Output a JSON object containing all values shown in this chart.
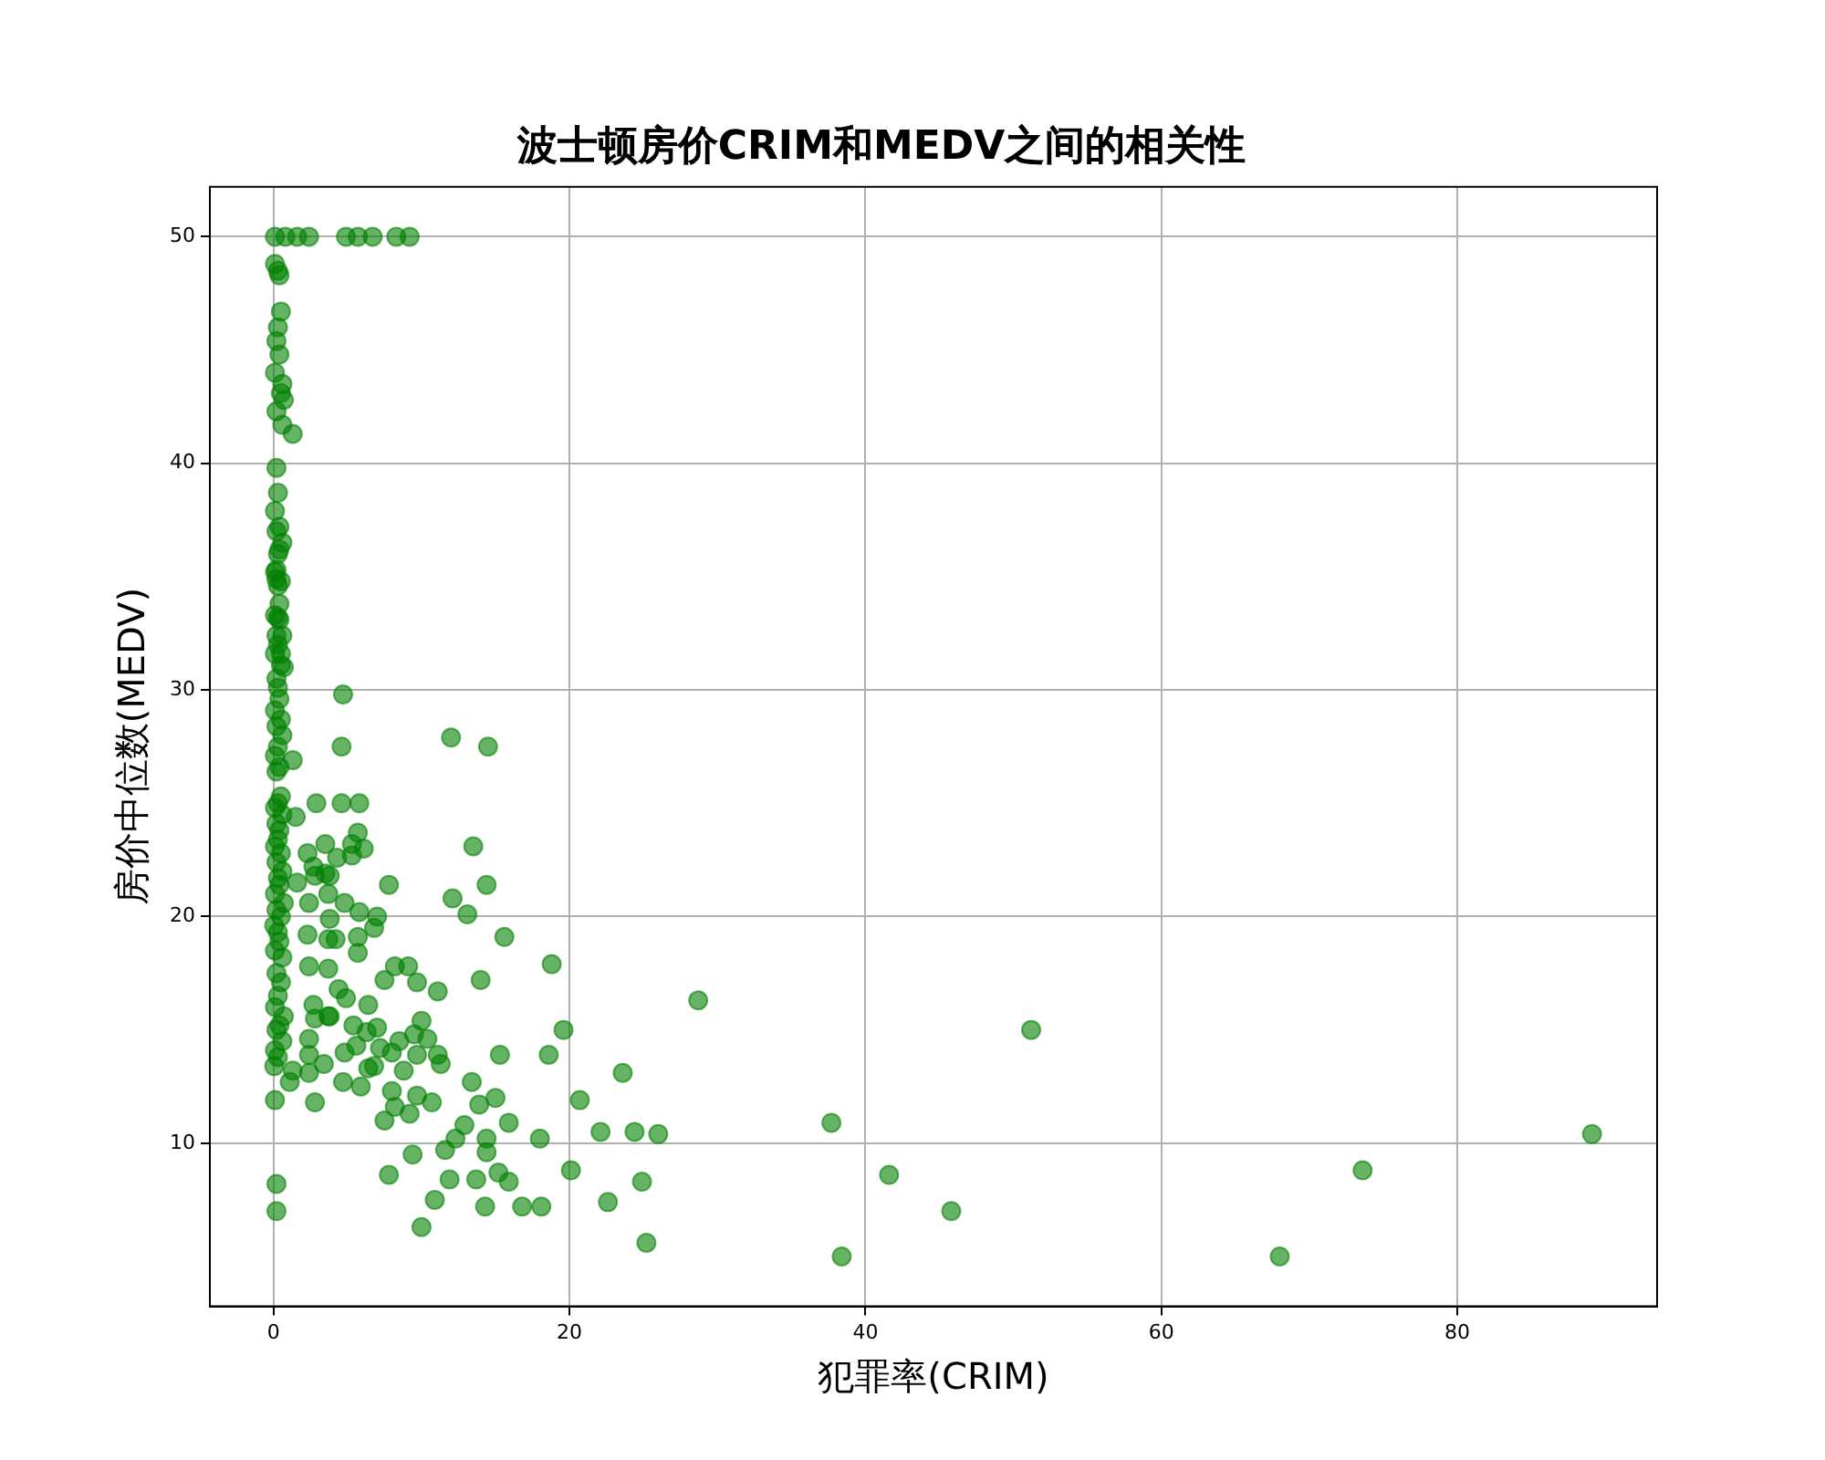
{
  "chart_data": {
    "type": "scatter",
    "title": "波士顿房价CRIM和MEDV之间的相关性",
    "xlabel": "犯罪率(CRIM)",
    "ylabel": "房价中位数(MEDV)",
    "xlim": [
      -4.3,
      93.5
    ],
    "ylim": [
      2.8,
      52.2
    ],
    "xticks": [
      0,
      20,
      40,
      60,
      80
    ],
    "yticks": [
      10,
      20,
      30,
      40,
      50
    ],
    "grid": true,
    "marker": "circle",
    "series": [
      {
        "color": "#008000",
        "x": [
          0.1,
          0.8,
          1.6,
          2.4,
          4.9,
          5.7,
          6.7,
          8.3,
          9.2,
          0.1,
          0.3,
          0.4,
          0.5,
          0.3,
          0.2,
          0.4,
          0.1,
          0.6,
          0.5,
          0.7,
          0.2,
          0.6,
          1.3,
          0.2,
          0.3,
          0.1,
          0.4,
          0.6,
          0.3,
          0.2,
          0.5,
          0.4,
          0.3,
          0.6,
          0.5,
          0.7,
          4.7,
          4.6,
          12.0,
          14.5,
          2.9,
          4.6,
          5.8,
          13.5,
          7.8,
          14.4,
          12.1,
          13.1,
          15.6,
          18.8,
          28.7,
          7.5,
          8.2,
          9.1,
          9.7,
          11.1,
          14.0,
          19.6,
          15.3,
          18.6,
          23.6,
          20.7,
          22.1,
          24.4,
          26.0,
          20.1,
          24.9,
          22.6,
          25.2,
          18.1,
          16.8,
          14.3,
          10.0,
          10.9,
          11.9,
          13.7,
          15.9,
          15.2,
          7.8,
          9.4,
          11.6,
          14.4,
          18.0,
          14.4,
          12.3,
          12.9,
          15.9,
          15.0,
          13.9,
          13.4,
          10.7,
          9.2,
          7.5,
          8.2,
          9.7,
          8.0,
          5.9,
          4.7,
          2.8,
          0.1,
          0.2,
          0.2,
          11.1,
          11.3,
          10.0,
          10.4,
          9.7,
          9.5,
          8.5,
          8.8,
          8.0,
          7.2,
          6.8,
          6.4,
          7.0,
          6.3,
          5.4,
          6.4,
          4.9,
          4.4,
          4.8,
          5.6,
          3.7,
          2.7,
          2.4,
          3.7,
          2.4,
          2.4,
          3.4,
          1.3,
          1.1,
          2.4,
          2.8,
          3.8,
          5.7,
          5.7,
          6.8,
          7.0,
          5.8,
          4.8,
          3.8,
          4.2,
          3.7,
          2.3,
          2.4,
          1.6,
          3.7,
          3.8,
          2.8,
          3.5,
          2.3,
          2.7,
          3.5,
          4.3,
          5.3,
          5.3,
          6.1,
          5.7,
          1.5,
          1.3,
          37.7,
          38.4,
          41.6,
          45.8,
          51.2,
          68.0,
          73.6,
          89.1,
          0.05,
          0.3,
          0.1,
          0.6,
          0.2,
          0.4,
          0.7,
          0.1,
          0.3,
          0.5,
          0.2,
          0.6,
          0.1,
          0.4,
          0.3,
          0.05,
          0.5,
          0.2,
          0.7,
          0.1,
          0.4,
          0.3,
          0.6,
          0.2,
          0.5,
          0.1,
          0.3,
          0.4,
          0.2,
          0.6,
          0.1,
          0.3,
          0.5,
          0.2,
          0.4,
          0.1,
          0.3,
          0.6,
          0.2,
          0.5,
          0.1,
          0.4,
          0.3,
          0.2,
          0.5,
          0.1,
          0.3,
          0.2,
          0.4,
          0.1,
          0.3,
          0.2,
          0.1,
          0.4,
          0.2
        ],
        "values": [
          50,
          50,
          50,
          50,
          50,
          50,
          50,
          50,
          50,
          48.8,
          48.5,
          48.3,
          46.7,
          46,
          45.4,
          44.8,
          44,
          43.5,
          43.1,
          42.8,
          42.3,
          41.7,
          41.3,
          39.8,
          38.7,
          37.9,
          37.2,
          36.5,
          36,
          35.3,
          34.8,
          33.8,
          33.2,
          32.4,
          31.6,
          31,
          29.8,
          27.5,
          27.9,
          27.5,
          25,
          25,
          25,
          23.1,
          21.4,
          21.4,
          20.8,
          20.1,
          19.1,
          17.9,
          16.3,
          17.2,
          17.8,
          17.8,
          17.1,
          16.7,
          17.2,
          15,
          13.9,
          13.9,
          13.1,
          11.9,
          10.5,
          10.5,
          10.4,
          8.8,
          8.3,
          7.4,
          5.6,
          7.2,
          7.2,
          7.2,
          6.3,
          7.5,
          8.4,
          8.4,
          8.3,
          8.7,
          8.6,
          9.5,
          9.7,
          9.6,
          10.2,
          10.2,
          10.2,
          10.8,
          10.9,
          12,
          11.7,
          12.7,
          11.8,
          11.3,
          11,
          11.6,
          12.1,
          12.3,
          12.5,
          12.7,
          11.8,
          11.9,
          8.2,
          7,
          13.9,
          13.5,
          15.4,
          14.6,
          13.9,
          14.8,
          14.5,
          13.2,
          14,
          14.2,
          13.4,
          13.3,
          15.1,
          14.9,
          15.2,
          16.1,
          16.4,
          16.8,
          14,
          14.3,
          15.6,
          16.1,
          17.8,
          17.7,
          13.9,
          13.1,
          13.5,
          13.2,
          12.7,
          14.6,
          15.5,
          15.6,
          19.1,
          18.4,
          19.5,
          20,
          20.2,
          20.6,
          19.9,
          19,
          19,
          19.2,
          20.6,
          21.5,
          21,
          21.8,
          21.8,
          21.9,
          22.8,
          22.2,
          23.2,
          22.6,
          22.7,
          23.2,
          23,
          23.7,
          24.4,
          26.9,
          10.9,
          5,
          8.6,
          7,
          15,
          5,
          8.8,
          10.4,
          13.4,
          13.8,
          14.1,
          14.5,
          15,
          15.2,
          15.6,
          16,
          16.5,
          17.1,
          17.5,
          18.2,
          18.5,
          18.9,
          19.3,
          19.6,
          20,
          20.3,
          20.6,
          21,
          21.4,
          21.7,
          22,
          22.4,
          22.8,
          23.1,
          23.4,
          23.8,
          24.1,
          24.5,
          24.8,
          25,
          25.3,
          26.4,
          26.6,
          27.1,
          27.5,
          28,
          28.4,
          28.7,
          29.1,
          29.6,
          30.1,
          30.5,
          31.1,
          31.6,
          32,
          32.4,
          33.1,
          33.3,
          34.6,
          34.9,
          35.2,
          36.2,
          37
        ]
      }
    ]
  }
}
